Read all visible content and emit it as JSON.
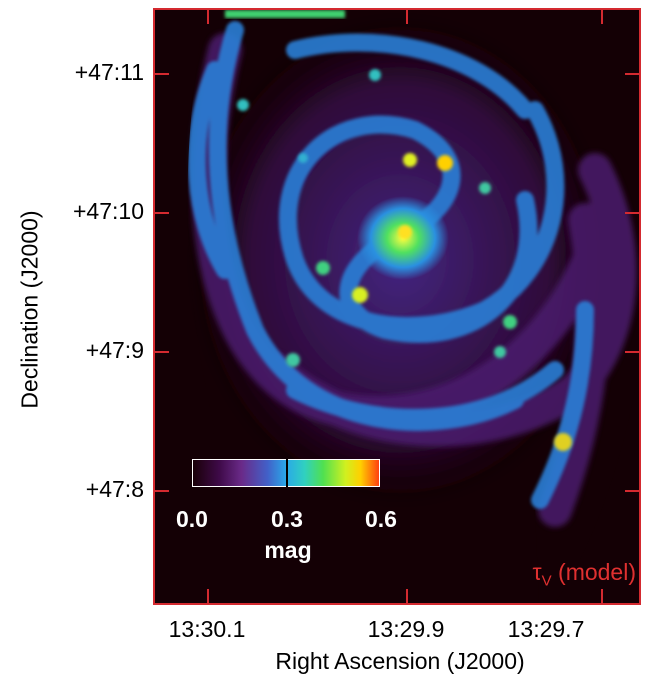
{
  "axes": {
    "x_label": "Right Ascension (J2000)",
    "y_label": "Declination (J2000)",
    "x_ticks": [
      "13:30.1",
      "13:29.9",
      "13:29.7"
    ],
    "y_ticks": [
      "+47:11",
      "+47:10",
      "+47:9",
      "+47:8"
    ]
  },
  "colorbar": {
    "tick_labels": [
      "0.0",
      "0.3",
      "0.6"
    ],
    "unit": "mag",
    "range": [
      0.0,
      0.6
    ]
  },
  "panel_label": {
    "symbol": "τ",
    "subscript": "V",
    "text": "(model)"
  },
  "colors": {
    "frame": "#d42a30",
    "background": "#140005",
    "label_red": "#e03030"
  }
}
